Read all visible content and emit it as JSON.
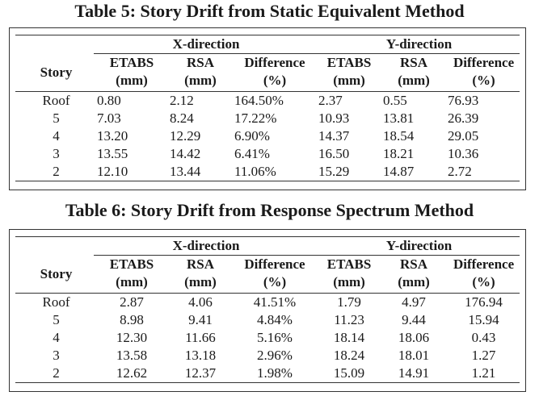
{
  "tables": [
    {
      "caption": "Table 5: Story Drift from Static Equivalent Method",
      "x_group": "X-direction",
      "y_group": "Y-direction",
      "story_header": "Story",
      "columns": [
        {
          "top": "ETABS",
          "bottom": "(mm)"
        },
        {
          "top": "RSA",
          "bottom": "(mm)"
        },
        {
          "top": "Difference",
          "bottom": "(%)"
        },
        {
          "top": "ETABS",
          "bottom": "(mm)"
        },
        {
          "top": "RSA",
          "bottom": "(mm)"
        },
        {
          "top": "Difference",
          "bottom": "(%)"
        }
      ],
      "rows": [
        [
          "Roof",
          "0.80",
          "2.12",
          "164.50%",
          "2.37",
          "0.55",
          "76.93"
        ],
        [
          "5",
          "7.03",
          "8.24",
          "17.22%",
          "10.93",
          "13.81",
          "26.39"
        ],
        [
          "4",
          "13.20",
          "12.29",
          "6.90%",
          "14.37",
          "18.54",
          "29.05"
        ],
        [
          "3",
          "13.55",
          "14.42",
          "6.41%",
          "16.50",
          "18.21",
          "10.36"
        ],
        [
          "2",
          "12.10",
          "13.44",
          "11.06%",
          "15.29",
          "14.87",
          "2.72"
        ]
      ]
    },
    {
      "caption": "Table 6: Story Drift from Response Spectrum Method",
      "x_group": "X-direction",
      "y_group": "Y-direction",
      "story_header": "Story",
      "columns": [
        {
          "top": "ETABS",
          "bottom": "(mm)"
        },
        {
          "top": "RSA",
          "bottom": "(mm)"
        },
        {
          "top": "Difference",
          "bottom": "(%)"
        },
        {
          "top": "ETABS",
          "bottom": "(mm)"
        },
        {
          "top": "RSA",
          "bottom": "(mm)"
        },
        {
          "top": "Difference",
          "bottom": "(%)"
        }
      ],
      "rows": [
        [
          "Roof",
          "2.87",
          "4.06",
          "41.51%",
          "1.79",
          "4.97",
          "176.94"
        ],
        [
          "5",
          "8.98",
          "9.41",
          "4.84%",
          "11.23",
          "9.44",
          "15.94"
        ],
        [
          "4",
          "12.30",
          "11.66",
          "5.16%",
          "18.14",
          "18.06",
          "0.43"
        ],
        [
          "3",
          "13.58",
          "13.18",
          "2.96%",
          "18.24",
          "18.01",
          "1.27"
        ],
        [
          "2",
          "12.62",
          "12.37",
          "1.98%",
          "15.09",
          "14.91",
          "1.21"
        ]
      ]
    }
  ]
}
